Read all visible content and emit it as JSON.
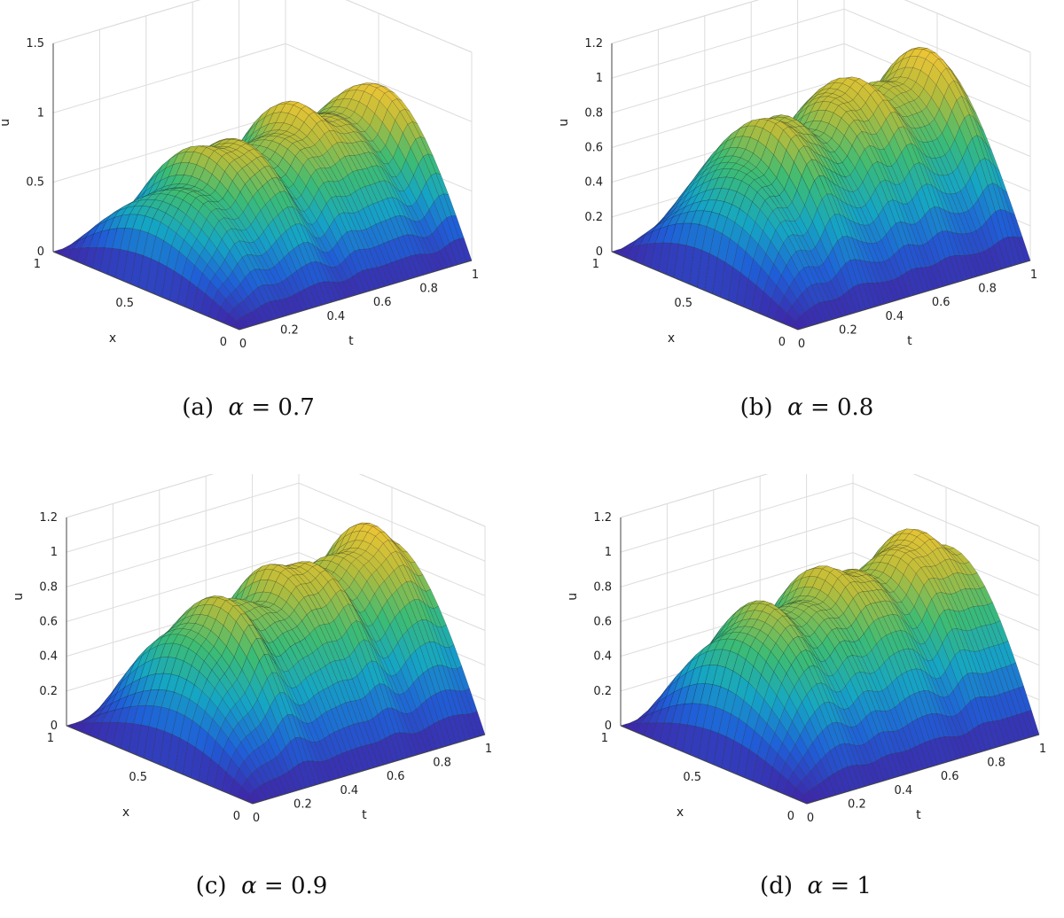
{
  "figure": {
    "panels": [
      {
        "label": "(a)",
        "symbol": "α",
        "relation": "=",
        "value": "0.7"
      },
      {
        "label": "(b)",
        "symbol": "α",
        "relation": "=",
        "value": "0.8"
      },
      {
        "label": "(c)",
        "symbol": "α",
        "relation": "=",
        "value": "0.9"
      },
      {
        "label": "(d)",
        "symbol": "α",
        "relation": "=",
        "value": "1"
      }
    ]
  },
  "chart_data": [
    {
      "type": "surface",
      "xlabel": "t",
      "ylabel": "x",
      "zlabel": "u",
      "t_ticks": [
        "0",
        "0.2",
        "0.4",
        "0.6",
        "0.8",
        "1"
      ],
      "x_ticks": [
        "0",
        "0.5",
        "1"
      ],
      "u_ticks": [
        "0",
        "0.5",
        "1",
        "1.5"
      ],
      "t_range": [
        0,
        1
      ],
      "x_range": [
        0,
        1
      ],
      "u_range": [
        0,
        1.5
      ],
      "peak_u": 1.0,
      "alpha": 0.7,
      "colormap": [
        "#3e26a8",
        "#1f5fd8",
        "#15a6c4",
        "#3cbc74",
        "#b8bc3a",
        "#f9c734"
      ]
    },
    {
      "type": "surface",
      "xlabel": "t",
      "ylabel": "x",
      "zlabel": "u",
      "t_ticks": [
        "0",
        "0.2",
        "0.4",
        "0.6",
        "0.8",
        "1"
      ],
      "x_ticks": [
        "0",
        "0.5",
        "1"
      ],
      "u_ticks": [
        "0",
        "0.2",
        "0.4",
        "0.6",
        "0.8",
        "1",
        "1.2"
      ],
      "t_range": [
        0,
        1
      ],
      "x_range": [
        0,
        1
      ],
      "u_range": [
        0,
        1.2
      ],
      "peak_u": 1.0,
      "alpha": 0.8,
      "colormap": [
        "#3e26a8",
        "#1f5fd8",
        "#15a6c4",
        "#3cbc74",
        "#b8bc3a",
        "#f9c734"
      ]
    },
    {
      "type": "surface",
      "xlabel": "t",
      "ylabel": "x",
      "zlabel": "u",
      "t_ticks": [
        "0",
        "0.2",
        "0.4",
        "0.6",
        "0.8",
        "1"
      ],
      "x_ticks": [
        "0",
        "0.5",
        "1"
      ],
      "u_ticks": [
        "0",
        "0.2",
        "0.4",
        "0.6",
        "0.8",
        "1",
        "1.2"
      ],
      "t_range": [
        0,
        1
      ],
      "x_range": [
        0,
        1
      ],
      "u_range": [
        0,
        1.2
      ],
      "peak_u": 1.0,
      "alpha": 0.9,
      "colormap": [
        "#3e26a8",
        "#1f5fd8",
        "#15a6c4",
        "#3cbc74",
        "#b8bc3a",
        "#f9c734"
      ]
    },
    {
      "type": "surface",
      "xlabel": "t",
      "ylabel": "x",
      "zlabel": "u",
      "t_ticks": [
        "0",
        "0.2",
        "0.4",
        "0.6",
        "0.8",
        "1"
      ],
      "x_ticks": [
        "0",
        "0.5",
        "1"
      ],
      "u_ticks": [
        "0",
        "0.2",
        "0.4",
        "0.6",
        "0.8",
        "1",
        "1.2"
      ],
      "t_range": [
        0,
        1
      ],
      "x_range": [
        0,
        1
      ],
      "u_range": [
        0,
        1.2
      ],
      "peak_u": 1.0,
      "alpha": 1,
      "colormap": [
        "#3e26a8",
        "#1f5fd8",
        "#15a6c4",
        "#3cbc74",
        "#b8bc3a",
        "#f9c734"
      ]
    }
  ]
}
